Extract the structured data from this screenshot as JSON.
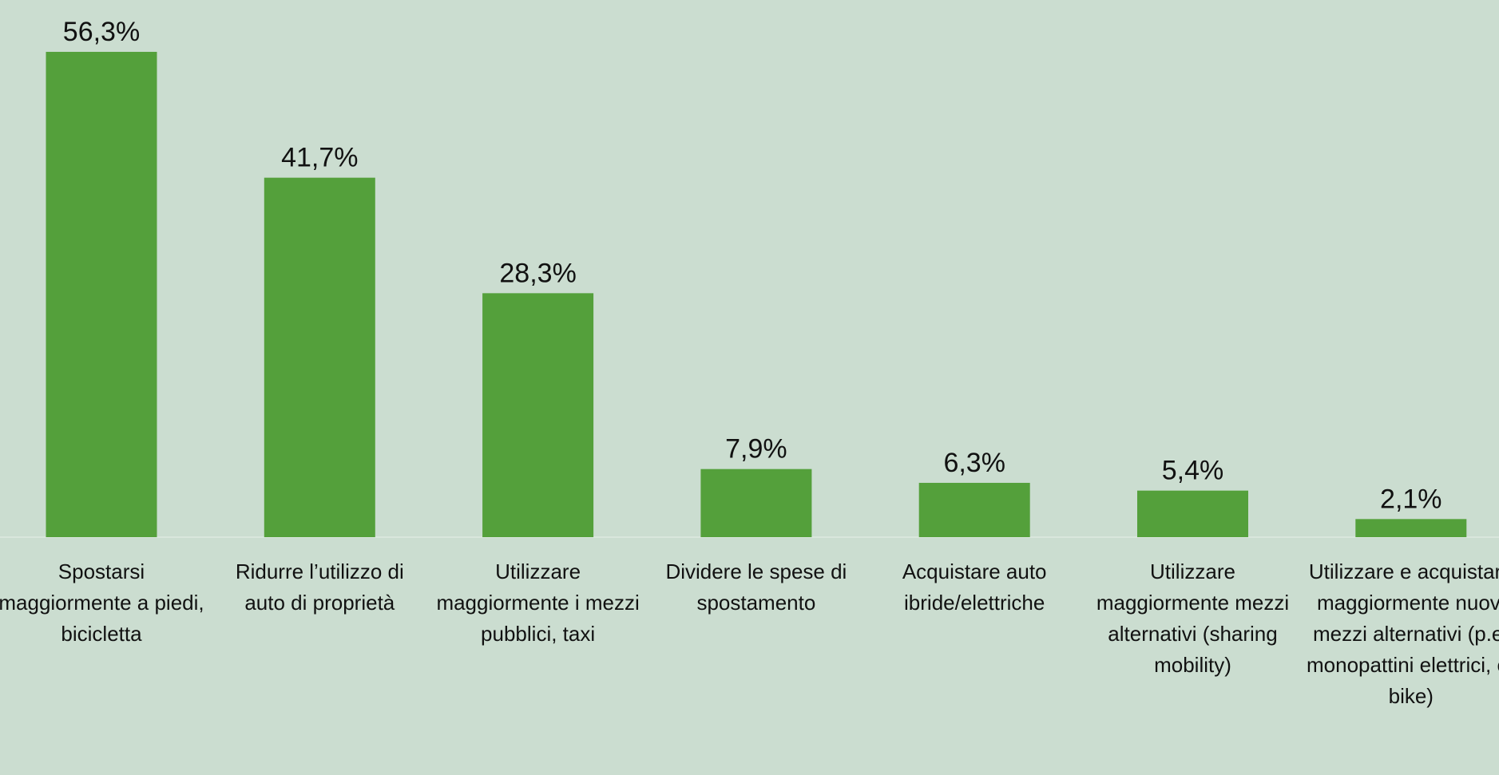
{
  "chart_data": {
    "type": "bar",
    "categories": [
      "Spostarsi maggiormente a piedi, bicicletta",
      "Ridurre l’utilizzo di auto di proprietà",
      "Utilizzare maggiormente i mezzi pubblici, taxi",
      "Dividere le spese di spostamento",
      "Acquistare auto ibride/elettriche",
      "Utilizzare maggiormente mezzi alternativi (sharing mobility)",
      "Utilizzare e acquistare maggiormente nuovi mezzi alternativi (p.e. monopattini elettrici, e-bike)"
    ],
    "values": [
      56.3,
      41.7,
      28.3,
      7.9,
      6.3,
      5.4,
      2.1
    ],
    "value_labels": [
      "56,3%",
      "41,7%",
      "28,3%",
      "7,9%",
      "6,3%",
      "5,4%",
      "2,1%"
    ],
    "color": "#54a03b",
    "ylim": [
      0,
      60
    ]
  }
}
